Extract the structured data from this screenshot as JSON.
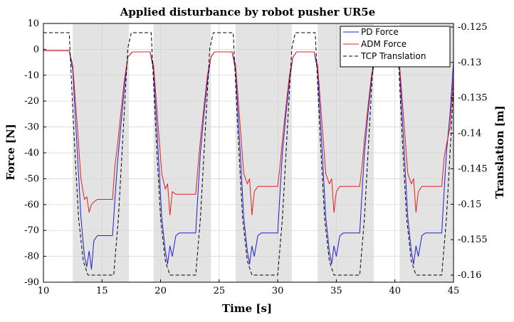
{
  "chart_data": {
    "type": "line",
    "title": "Applied disturbance by robot pusher UR5e",
    "xlabel": "Time [s]",
    "ylabel_left": "Force [N]",
    "ylabel_right": "Translation [m]",
    "xlim": [
      10,
      45
    ],
    "ylim_left": [
      -90,
      10
    ],
    "ylim_right": [
      -0.161,
      -0.1245
    ],
    "xticks": [
      "10",
      "15",
      "20",
      "25",
      "30",
      "35",
      "40",
      "45"
    ],
    "yticks_left": [
      "10",
      "0",
      "-10",
      "-20",
      "-30",
      "-40",
      "-50",
      "-60",
      "-70",
      "-80",
      "-90"
    ],
    "yticks_right": [
      "-0.125",
      "-0.13",
      "-0.135",
      "-0.14",
      "-0.145",
      "-0.15",
      "-0.155",
      "-0.16"
    ],
    "grid": true,
    "legend_position": "top-right",
    "shaded_intervals": [
      [
        12.5,
        17.3
      ],
      [
        19.4,
        24.3
      ],
      [
        26.4,
        31.2
      ],
      [
        33.4,
        38.2
      ],
      [
        40.4,
        45
      ]
    ],
    "series": [
      {
        "name": "PD Force",
        "color": "#1f1fd6",
        "style": "solid",
        "axis": "left",
        "x": [
          10,
          12.2,
          12.5,
          12.9,
          13.2,
          13.5,
          13.7,
          13.9,
          14.1,
          14.3,
          14.6,
          15,
          15.5,
          15.9,
          16.1,
          16.3,
          16.6,
          16.9,
          17.2,
          17.6,
          17.9,
          19.1,
          19.4,
          19.8,
          20.1,
          20.4,
          20.6,
          20.8,
          21.0,
          21.3,
          21.6,
          22,
          22.5,
          23,
          23.2,
          23.4,
          23.7,
          24.0,
          24.3,
          24.6,
          24.9,
          26.1,
          26.4,
          26.8,
          27.1,
          27.4,
          27.6,
          27.8,
          28.0,
          28.3,
          28.6,
          29,
          29.5,
          30,
          30.2,
          30.4,
          30.7,
          31.0,
          31.3,
          31.6,
          31.9,
          33.1,
          33.4,
          33.8,
          34.1,
          34.4,
          34.6,
          34.8,
          35.0,
          35.3,
          35.6,
          36,
          36.5,
          37,
          37.2,
          37.4,
          37.7,
          38.0,
          38.3,
          38.6,
          38.9,
          40.1,
          40.4,
          40.8,
          41.1,
          41.4,
          41.6,
          41.8,
          42.0,
          42.3,
          42.6,
          43,
          43.5,
          44,
          44.2,
          44.4,
          44.7,
          45
        ],
        "y": [
          -0.5,
          -0.5,
          -8,
          -40,
          -65,
          -80,
          -84,
          -78,
          -85,
          -74,
          -72,
          -72,
          -72,
          -72,
          -58,
          -45,
          -30,
          -15,
          -3,
          -1,
          -1,
          -1,
          -8,
          -40,
          -65,
          -78,
          -83,
          -76,
          -80,
          -72,
          -71,
          -71,
          -71,
          -71,
          -55,
          -40,
          -25,
          -12,
          -3,
          -1,
          -1,
          -1,
          -8,
          -40,
          -65,
          -78,
          -83,
          -76,
          -80,
          -72,
          -71,
          -71,
          -71,
          -71,
          -55,
          -40,
          -25,
          -12,
          -3,
          -1,
          -1,
          -1,
          -8,
          -40,
          -65,
          -78,
          -83,
          -76,
          -80,
          -72,
          -71,
          -71,
          -71,
          -71,
          -55,
          -40,
          -25,
          -12,
          -3,
          -1,
          -1,
          -1,
          -8,
          -40,
          -65,
          -78,
          -83,
          -76,
          -80,
          -72,
          -71,
          -71,
          -71,
          -71,
          -55,
          -40,
          -25,
          -5
        ]
      },
      {
        "name": "ADM Force",
        "color": "#e02020",
        "style": "solid",
        "axis": "left",
        "x": [
          10,
          12.2,
          12.5,
          12.9,
          13.2,
          13.5,
          13.7,
          13.9,
          14.1,
          14.3,
          14.6,
          15,
          15.5,
          15.9,
          16.1,
          16.3,
          16.6,
          16.9,
          17.2,
          17.6,
          17.9,
          19.1,
          19.4,
          19.8,
          20.1,
          20.4,
          20.6,
          20.8,
          21.0,
          21.3,
          21.6,
          22,
          22.5,
          23,
          23.2,
          23.4,
          23.7,
          24.0,
          24.3,
          24.6,
          24.9,
          26.1,
          26.4,
          26.8,
          27.1,
          27.4,
          27.6,
          27.8,
          28.0,
          28.3,
          28.6,
          29,
          29.5,
          30,
          30.2,
          30.4,
          30.7,
          31.0,
          31.3,
          31.6,
          31.9,
          33.1,
          33.4,
          33.8,
          34.1,
          34.4,
          34.6,
          34.8,
          35.0,
          35.3,
          35.6,
          36,
          36.5,
          37,
          37.2,
          37.4,
          37.7,
          38.0,
          38.3,
          38.6,
          38.9,
          40.1,
          40.4,
          40.8,
          41.1,
          41.4,
          41.6,
          41.8,
          42.0,
          42.3,
          42.6,
          43,
          43.5,
          44,
          44.2,
          44.4,
          44.7,
          45
        ],
        "y": [
          -0.5,
          -0.5,
          -6,
          -30,
          -50,
          -58,
          -57,
          -63,
          -60,
          -59,
          -58,
          -58,
          -58,
          -58,
          -45,
          -38,
          -25,
          -12,
          -3,
          -1,
          -1,
          -1,
          -6,
          -30,
          -48,
          -54,
          -52,
          -64,
          -55,
          -56,
          -56,
          -56,
          -56,
          -56,
          -45,
          -35,
          -22,
          -10,
          -3,
          -1,
          -1,
          -1,
          -6,
          -30,
          -48,
          -52,
          -50,
          -64,
          -55,
          -53,
          -53,
          -53,
          -53,
          -53,
          -45,
          -35,
          -22,
          -10,
          -3,
          -1,
          -1,
          -1,
          -6,
          -30,
          -48,
          -52,
          -50,
          -63,
          -55,
          -53,
          -53,
          -53,
          -53,
          -53,
          -45,
          -35,
          -22,
          -10,
          -3,
          -1,
          -1,
          -1,
          -6,
          -30,
          -48,
          -52,
          -50,
          -63,
          -55,
          -53,
          -53,
          -53,
          -53,
          -53,
          -42,
          -37,
          -30,
          -10
        ]
      },
      {
        "name": "TCP Translation",
        "color": "#000000",
        "style": "dashed",
        "axis": "right",
        "x": [
          10,
          12.2,
          12.6,
          13.0,
          13.4,
          13.8,
          14.2,
          16.0,
          16.4,
          16.8,
          17.2,
          17.5,
          17.7,
          19.2,
          19.6,
          20.0,
          20.4,
          20.8,
          21.2,
          23.0,
          23.4,
          23.8,
          24.2,
          24.5,
          24.7,
          26.2,
          26.6,
          27.0,
          27.4,
          27.8,
          28.2,
          30.0,
          30.4,
          30.8,
          31.2,
          31.5,
          31.7,
          33.2,
          33.6,
          34.0,
          34.4,
          34.8,
          35.2,
          37.0,
          37.4,
          37.8,
          38.2,
          38.5,
          38.7,
          40.2,
          40.6,
          41.0,
          41.4,
          41.8,
          42.2,
          44.0,
          44.4,
          44.8,
          45
        ],
        "y": [
          -0.1258,
          -0.1258,
          -0.14,
          -0.152,
          -0.158,
          -0.16,
          -0.16,
          -0.16,
          -0.152,
          -0.14,
          -0.128,
          -0.1258,
          -0.1258,
          -0.1258,
          -0.14,
          -0.152,
          -0.158,
          -0.16,
          -0.16,
          -0.16,
          -0.152,
          -0.14,
          -0.128,
          -0.1258,
          -0.1258,
          -0.1258,
          -0.14,
          -0.152,
          -0.158,
          -0.16,
          -0.16,
          -0.16,
          -0.152,
          -0.14,
          -0.128,
          -0.1258,
          -0.1258,
          -0.1258,
          -0.14,
          -0.152,
          -0.158,
          -0.16,
          -0.16,
          -0.16,
          -0.152,
          -0.14,
          -0.128,
          -0.1258,
          -0.1258,
          -0.1258,
          -0.14,
          -0.152,
          -0.158,
          -0.16,
          -0.16,
          -0.16,
          -0.152,
          -0.14,
          -0.133
        ]
      }
    ]
  }
}
